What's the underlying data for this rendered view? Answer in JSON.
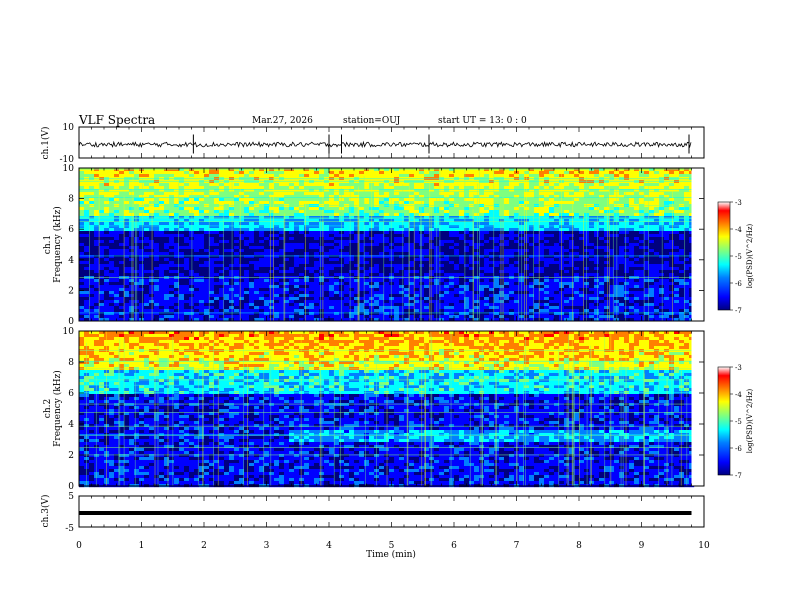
{
  "header": {
    "title": "VLF Spectra",
    "date": "Mar.27, 2026",
    "station": "station=OUJ",
    "start": "start  UT =   13: 0  : 0"
  },
  "colors": {
    "waveform": "#000000",
    "axis": "#000000",
    "colormap": [
      "#00007f",
      "#0000ff",
      "#007fff",
      "#00ffff",
      "#7fff7f",
      "#ffff00",
      "#ff7f00",
      "#ff0000",
      "#7f0000"
    ]
  },
  "chart_data": [
    {
      "type": "line",
      "name": "ch1-waveform",
      "ylabel": "ch.1(V)",
      "ytick_labels": [
        "10",
        "-10"
      ],
      "ylim": [
        -10,
        10
      ],
      "xlim": [
        0,
        10
      ],
      "spikes_min": [
        1.83,
        4.0,
        4.2,
        5.6,
        9.76
      ],
      "data_extent_min": [
        0,
        9.8
      ]
    },
    {
      "type": "heatmap",
      "name": "ch1-spectrogram",
      "ylabel": "ch.1\nFrequency (kHz)",
      "ytick_labels": [
        "0",
        "2",
        "4",
        "6",
        "8",
        "10"
      ],
      "ylim": [
        0,
        10
      ],
      "xlim": [
        0,
        10
      ],
      "colorbar": {
        "label": "log(PSD)(V^2/Hz)",
        "tick_labels": [
          "-3",
          "-4",
          "-5",
          "-6",
          "-7"
        ],
        "range": [
          -7,
          -3
        ]
      }
    },
    {
      "type": "heatmap",
      "name": "ch2-spectrogram",
      "ylabel": "ch.2\nFrequency (kHz)",
      "ytick_labels": [
        "0",
        "2",
        "4",
        "6",
        "8",
        "10"
      ],
      "ylim": [
        0,
        10
      ],
      "xlim": [
        0,
        10
      ],
      "colorbar": {
        "label": "log(PSD)(V^2/Hz)",
        "tick_labels": [
          "-3",
          "-4",
          "-5",
          "-6",
          "-7"
        ],
        "range": [
          -7,
          -3
        ]
      }
    },
    {
      "type": "line",
      "name": "ch3-waveform",
      "ylabel": "ch.3(V)",
      "ytick_labels": [
        "5",
        "-5"
      ],
      "ylim": [
        -5,
        5
      ],
      "xlim": [
        0,
        10
      ],
      "level_v": -0.5,
      "data_extent_min": [
        0,
        9.8
      ]
    }
  ],
  "xaxis": {
    "label": "Time  (min)",
    "tick_labels": [
      "0",
      "1",
      "2",
      "3",
      "4",
      "5",
      "6",
      "7",
      "8",
      "9",
      "10"
    ],
    "range": [
      0,
      10
    ]
  }
}
